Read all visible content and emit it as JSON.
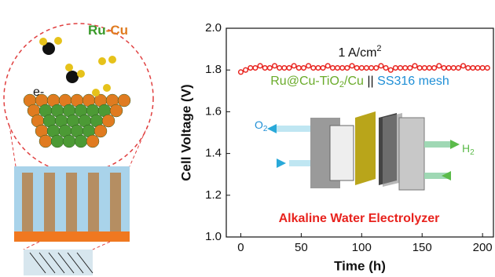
{
  "chart_data": {
    "type": "scatter",
    "y_label": "Cell Voltage (V)",
    "x_label": "Time (h)",
    "xlim": [
      -12,
      209
    ],
    "ylim": [
      1.0,
      2.0
    ],
    "xticks": [
      0,
      50,
      100,
      150,
      200
    ],
    "yticks": [
      {
        "value": 1.0,
        "label": "1.0"
      },
      1.2,
      1.4,
      1.6,
      1.8,
      {
        "value": 2.0,
        "label": "2.0"
      }
    ],
    "series": [
      {
        "color": "#e8231e",
        "x": [
          0,
          4,
          8,
          12,
          16,
          20,
          24,
          28,
          32,
          36,
          40,
          44,
          48,
          52,
          56,
          60,
          64,
          68,
          72,
          76,
          80,
          84,
          88,
          92,
          96,
          100,
          104,
          108,
          112,
          116,
          120,
          124,
          128,
          132,
          136,
          140,
          144,
          148,
          152,
          156,
          160,
          164,
          168,
          172,
          176,
          180,
          184,
          188,
          192,
          196,
          200,
          204
        ],
        "values": [
          1.79,
          1.8,
          1.81,
          1.81,
          1.82,
          1.81,
          1.81,
          1.82,
          1.81,
          1.81,
          1.81,
          1.82,
          1.81,
          1.81,
          1.82,
          1.81,
          1.81,
          1.81,
          1.82,
          1.81,
          1.81,
          1.81,
          1.81,
          1.82,
          1.81,
          1.81,
          1.81,
          1.81,
          1.81,
          1.82,
          1.81,
          1.8,
          1.81,
          1.81,
          1.81,
          1.81,
          1.82,
          1.81,
          1.81,
          1.81,
          1.81,
          1.82,
          1.81,
          1.81,
          1.81,
          1.81,
          1.82,
          1.81,
          1.81,
          1.81,
          1.81,
          1.81
        ]
      }
    ],
    "annotations": {
      "current_density": [
        "1 A/cm",
        "2"
      ],
      "cell": [
        "Ru@Cu-TiO",
        "2",
        "/Cu",
        " || ",
        "SS316 mesh"
      ],
      "device": "Alkaline Water Electrolyzer",
      "o2": [
        "O",
        "2"
      ],
      "h2": [
        "H",
        "2"
      ]
    }
  },
  "illustration": {
    "alloy": [
      "Ru",
      "-Cu"
    ],
    "electron": "e-"
  }
}
